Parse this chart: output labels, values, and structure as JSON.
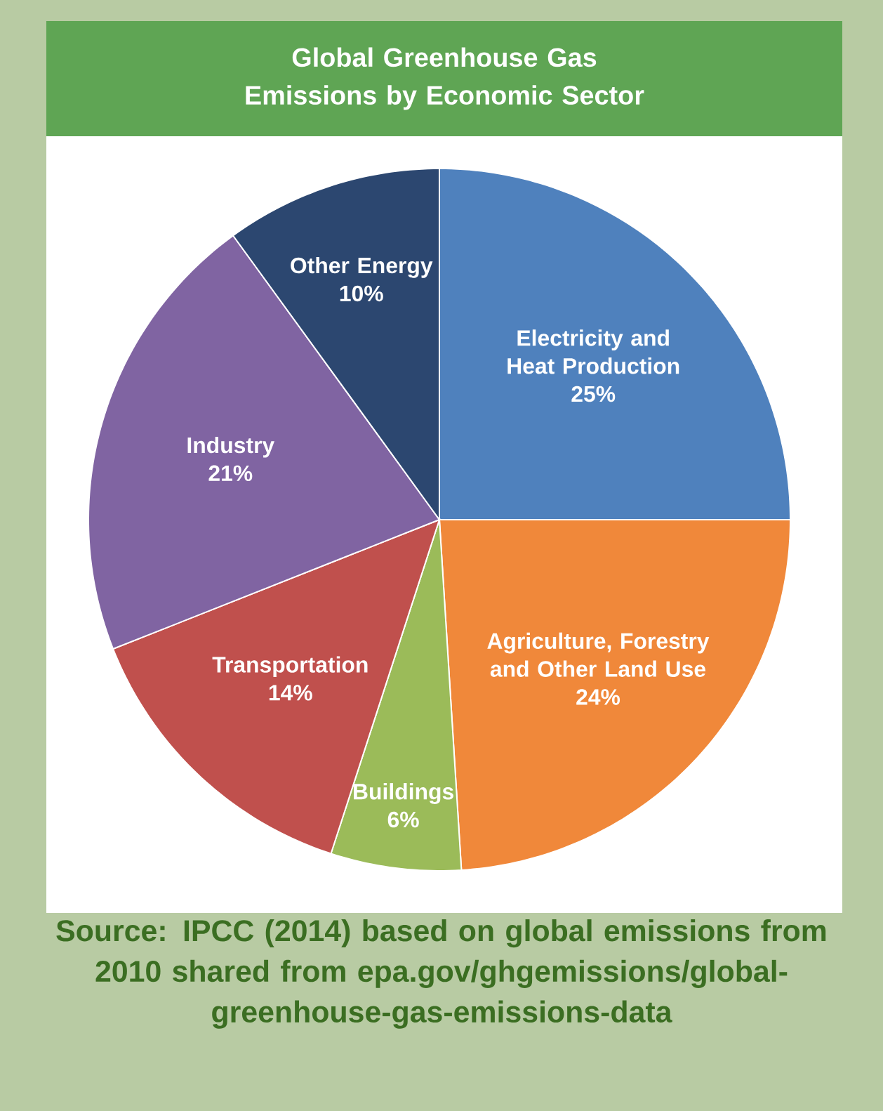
{
  "chart_data": {
    "type": "pie",
    "title": "Global Greenhouse Gas Emissions by Economic Sector",
    "categories": [
      "Electricity and Heat Production",
      "Agriculture, Forestry and Other Land Use",
      "Buildings",
      "Transportation",
      "Industry",
      "Other Energy"
    ],
    "values": [
      25,
      24,
      6,
      14,
      21,
      10
    ],
    "value_labels": [
      "25%",
      "24%",
      "6%",
      "14%",
      "21%",
      "10%"
    ],
    "colors": [
      "#4f81bd",
      "#f0883a",
      "#9bbb59",
      "#c0504d",
      "#8064a2",
      "#2c4770"
    ],
    "annotations": [
      "Source: IPCC (2014) based on global emissions from 2010 shared from epa.gov/ghgemissions/global-greenhouse-gas-emissions-data"
    ]
  }
}
